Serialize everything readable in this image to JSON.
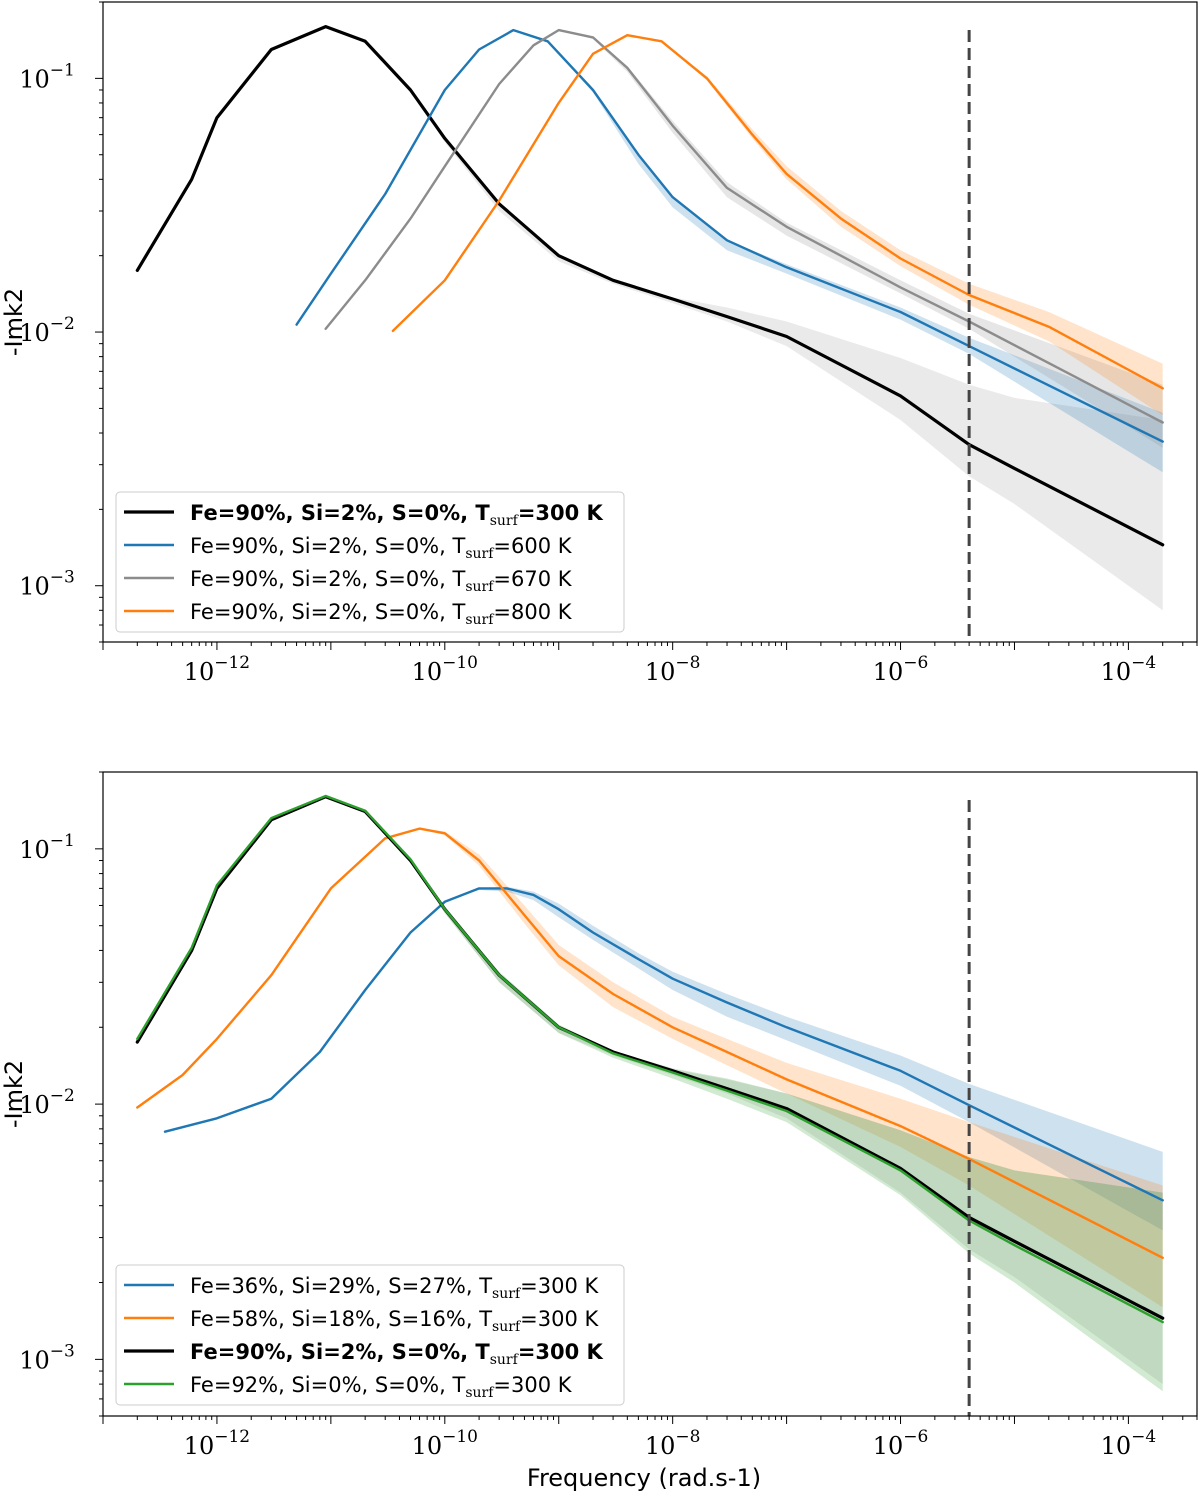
{
  "chart_data": [
    {
      "type": "line",
      "xscale": "log",
      "yscale": "log",
      "xlim": [
        1e-13,
        0.0004
      ],
      "ylim": [
        0.0006,
        0.2
      ],
      "ylabel": "-Imk2",
      "xlabel": "",
      "x_ticks": [
        "10^-12",
        "10^-10",
        "10^-8",
        "10^-6",
        "10^-4"
      ],
      "y_ticks": [
        "10^-1",
        "10^-2",
        "10^-3"
      ],
      "vline_x": 4e-06,
      "legend_position": "lower-left",
      "series": [
        {
          "name": "Fe=90%, Si=2%, S=0%, ",
          "temp": "=300 K",
          "color": "#000000",
          "bold": true,
          "x": [
            2e-13,
            6e-13,
            1e-12,
            3e-12,
            9e-12,
            2e-11,
            5e-11,
            1e-10,
            3e-10,
            1e-09,
            3e-09,
            1e-08,
            3e-08,
            1e-07,
            1e-06,
            4e-06,
            1e-05,
            0.0002
          ],
          "y": [
            0.0175,
            0.04,
            0.07,
            0.13,
            0.16,
            0.14,
            0.09,
            0.058,
            0.032,
            0.02,
            0.016,
            0.0135,
            0.0115,
            0.0096,
            0.0056,
            0.0036,
            0.0029,
            0.00145
          ],
          "band_upper": [
            0.0175,
            0.04,
            0.07,
            0.13,
            0.16,
            0.14,
            0.09,
            0.058,
            0.032,
            0.02,
            0.016,
            0.0137,
            0.0125,
            0.011,
            0.0079,
            0.0062,
            0.0055,
            0.0045
          ],
          "band_lower": [
            0.0175,
            0.04,
            0.07,
            0.13,
            0.16,
            0.14,
            0.09,
            0.056,
            0.03,
            0.019,
            0.0155,
            0.013,
            0.011,
            0.0088,
            0.0045,
            0.0027,
            0.0021,
            0.0008
          ]
        },
        {
          "name": "Fe=90%, Si=2%, S=0%, ",
          "temp": "=600 K",
          "color": "#1f77b4",
          "bold": false,
          "x": [
            5e-12,
            1e-11,
            3e-11,
            1e-10,
            2e-10,
            4e-10,
            8e-10,
            2e-09,
            5e-09,
            1e-08,
            3e-08,
            1e-07,
            1e-06,
            4e-06,
            0.0002
          ],
          "y": [
            0.0107,
            0.017,
            0.035,
            0.09,
            0.13,
            0.155,
            0.14,
            0.09,
            0.05,
            0.034,
            0.023,
            0.018,
            0.012,
            0.0088,
            0.0037
          ],
          "band_upper": [
            0.0107,
            0.017,
            0.035,
            0.09,
            0.13,
            0.155,
            0.14,
            0.09,
            0.05,
            0.034,
            0.023,
            0.0185,
            0.0125,
            0.0095,
            0.0048
          ],
          "band_lower": [
            0.0107,
            0.017,
            0.035,
            0.09,
            0.13,
            0.155,
            0.14,
            0.088,
            0.046,
            0.031,
            0.021,
            0.017,
            0.0112,
            0.0082,
            0.0028
          ]
        },
        {
          "name": "Fe=90%, Si=2%, S=0%, ",
          "temp": "=670 K",
          "color": "#8c8c8c",
          "bold": false,
          "x": [
            9e-12,
            2e-11,
            5e-11,
            1e-10,
            3e-10,
            6e-10,
            1e-09,
            2e-09,
            4e-09,
            1e-08,
            3e-08,
            1e-07,
            1e-06,
            4e-06,
            0.0002
          ],
          "y": [
            0.0103,
            0.016,
            0.028,
            0.045,
            0.095,
            0.135,
            0.155,
            0.145,
            0.11,
            0.065,
            0.037,
            0.026,
            0.015,
            0.011,
            0.0044
          ],
          "band_upper": [
            0.0103,
            0.016,
            0.028,
            0.045,
            0.095,
            0.135,
            0.155,
            0.145,
            0.112,
            0.068,
            0.039,
            0.027,
            0.016,
            0.0118,
            0.0062
          ],
          "band_lower": [
            0.0103,
            0.016,
            0.028,
            0.045,
            0.095,
            0.135,
            0.155,
            0.143,
            0.106,
            0.061,
            0.034,
            0.024,
            0.0142,
            0.0103,
            0.0035
          ]
        },
        {
          "name": "Fe=90%, Si=2%, S=0%, ",
          "temp": "=800 K",
          "color": "#ff7f0e",
          "bold": false,
          "x": [
            3.5e-11,
            1e-10,
            3e-10,
            1e-09,
            2e-09,
            4e-09,
            8e-09,
            2e-08,
            5e-08,
            1e-07,
            3e-07,
            1e-06,
            4e-06,
            2e-05,
            0.0002
          ],
          "y": [
            0.0101,
            0.016,
            0.033,
            0.08,
            0.125,
            0.148,
            0.14,
            0.1,
            0.06,
            0.042,
            0.028,
            0.0195,
            0.014,
            0.0105,
            0.006
          ],
          "band_upper": [
            0.0101,
            0.016,
            0.033,
            0.08,
            0.125,
            0.148,
            0.14,
            0.102,
            0.063,
            0.045,
            0.03,
            0.021,
            0.0155,
            0.012,
            0.0075
          ],
          "band_lower": [
            0.0101,
            0.016,
            0.033,
            0.08,
            0.125,
            0.148,
            0.14,
            0.098,
            0.058,
            0.04,
            0.026,
            0.0182,
            0.0128,
            0.0092,
            0.0047
          ]
        }
      ]
    },
    {
      "type": "line",
      "xscale": "log",
      "yscale": "log",
      "xlim": [
        1e-13,
        0.0004
      ],
      "ylim": [
        0.0006,
        0.2
      ],
      "ylabel": "-Imk2",
      "xlabel": "Frequency (rad.s-1)",
      "x_ticks": [
        "10^-12",
        "10^-10",
        "10^-8",
        "10^-6",
        "10^-4"
      ],
      "y_ticks": [
        "10^-1",
        "10^-2",
        "10^-3"
      ],
      "vline_x": 4e-06,
      "legend_position": "lower-left",
      "series": [
        {
          "name": "Fe=36%, Si=29%, S=27%, ",
          "temp": "=300 K",
          "color": "#1f77b4",
          "bold": false,
          "x": [
            3.5e-13,
            1e-12,
            3e-12,
            8e-12,
            2e-11,
            5e-11,
            1e-10,
            2e-10,
            3.5e-10,
            6e-10,
            1e-09,
            2e-09,
            5e-09,
            1e-08,
            3e-08,
            1e-07,
            1e-06,
            4e-06,
            0.0002
          ],
          "y": [
            0.0078,
            0.0088,
            0.0105,
            0.016,
            0.028,
            0.047,
            0.062,
            0.07,
            0.07,
            0.066,
            0.058,
            0.047,
            0.037,
            0.031,
            0.025,
            0.02,
            0.0135,
            0.0099,
            0.0042
          ],
          "band_upper": [
            0.0078,
            0.0088,
            0.0105,
            0.016,
            0.028,
            0.047,
            0.062,
            0.07,
            0.071,
            0.068,
            0.061,
            0.05,
            0.039,
            0.033,
            0.027,
            0.022,
            0.0155,
            0.012,
            0.0065
          ],
          "band_lower": [
            0.0078,
            0.0088,
            0.0105,
            0.016,
            0.028,
            0.047,
            0.062,
            0.069,
            0.068,
            0.063,
            0.054,
            0.044,
            0.034,
            0.028,
            0.022,
            0.0178,
            0.0118,
            0.0085,
            0.0032
          ]
        },
        {
          "name": "Fe=58%, Si=18%, S=16%, ",
          "temp": "=300 K",
          "color": "#ff7f0e",
          "bold": false,
          "x": [
            2e-13,
            5e-13,
            1e-12,
            3e-12,
            1e-11,
            3e-11,
            6e-11,
            1e-10,
            2e-10,
            5e-10,
            1e-09,
            3e-09,
            1e-08,
            3e-08,
            1e-07,
            1e-06,
            4e-06,
            0.0002
          ],
          "y": [
            0.0097,
            0.013,
            0.018,
            0.032,
            0.07,
            0.11,
            0.12,
            0.115,
            0.09,
            0.055,
            0.038,
            0.027,
            0.02,
            0.016,
            0.0125,
            0.0082,
            0.0061,
            0.0025
          ],
          "band_upper": [
            0.0097,
            0.013,
            0.018,
            0.032,
            0.07,
            0.11,
            0.12,
            0.117,
            0.095,
            0.06,
            0.042,
            0.03,
            0.022,
            0.018,
            0.0145,
            0.0105,
            0.0085,
            0.0048
          ],
          "band_lower": [
            0.0097,
            0.013,
            0.018,
            0.032,
            0.07,
            0.11,
            0.12,
            0.113,
            0.086,
            0.051,
            0.035,
            0.024,
            0.018,
            0.0142,
            0.011,
            0.0068,
            0.0048,
            0.0016
          ]
        },
        {
          "name": "Fe=90%, Si=2%, S=0%, ",
          "temp": "=300 K",
          "color": "#000000",
          "bold": true,
          "x": [
            2e-13,
            6e-13,
            1e-12,
            3e-12,
            9e-12,
            2e-11,
            5e-11,
            1e-10,
            3e-10,
            1e-09,
            3e-09,
            1e-08,
            3e-08,
            1e-07,
            1e-06,
            4e-06,
            1e-05,
            0.0002
          ],
          "y": [
            0.0175,
            0.04,
            0.07,
            0.13,
            0.16,
            0.14,
            0.09,
            0.058,
            0.032,
            0.02,
            0.016,
            0.0135,
            0.0115,
            0.0096,
            0.0056,
            0.0036,
            0.0029,
            0.00145
          ],
          "band_upper": [
            0.0175,
            0.04,
            0.07,
            0.13,
            0.16,
            0.14,
            0.09,
            0.058,
            0.032,
            0.02,
            0.016,
            0.0137,
            0.0125,
            0.011,
            0.0079,
            0.0062,
            0.0055,
            0.0045
          ],
          "band_lower": [
            0.0175,
            0.04,
            0.07,
            0.13,
            0.16,
            0.14,
            0.09,
            0.056,
            0.03,
            0.019,
            0.0155,
            0.013,
            0.011,
            0.0088,
            0.0045,
            0.0027,
            0.0021,
            0.0008
          ]
        },
        {
          "name": "Fe=92%, Si=0%, S=0%, ",
          "temp": "=300 K",
          "color": "#2ca02c",
          "bold": false,
          "x": [
            2e-13,
            6e-13,
            1e-12,
            3e-12,
            9e-12,
            2e-11,
            5e-11,
            1e-10,
            3e-10,
            1e-09,
            3e-09,
            1e-08,
            3e-08,
            1e-07,
            1e-06,
            4e-06,
            1e-05,
            0.0002
          ],
          "y": [
            0.018,
            0.041,
            0.072,
            0.132,
            0.161,
            0.141,
            0.091,
            0.058,
            0.032,
            0.02,
            0.0158,
            0.0133,
            0.0113,
            0.0094,
            0.0055,
            0.0035,
            0.0028,
            0.0014
          ],
          "band_upper": [
            0.018,
            0.041,
            0.072,
            0.132,
            0.161,
            0.141,
            0.091,
            0.059,
            0.033,
            0.0205,
            0.0162,
            0.0138,
            0.0126,
            0.011,
            0.0079,
            0.0062,
            0.0055,
            0.0045
          ],
          "band_lower": [
            0.018,
            0.041,
            0.072,
            0.132,
            0.161,
            0.141,
            0.091,
            0.056,
            0.03,
            0.019,
            0.0152,
            0.0126,
            0.0105,
            0.0085,
            0.0044,
            0.0026,
            0.002,
            0.00075
          ]
        }
      ]
    }
  ]
}
